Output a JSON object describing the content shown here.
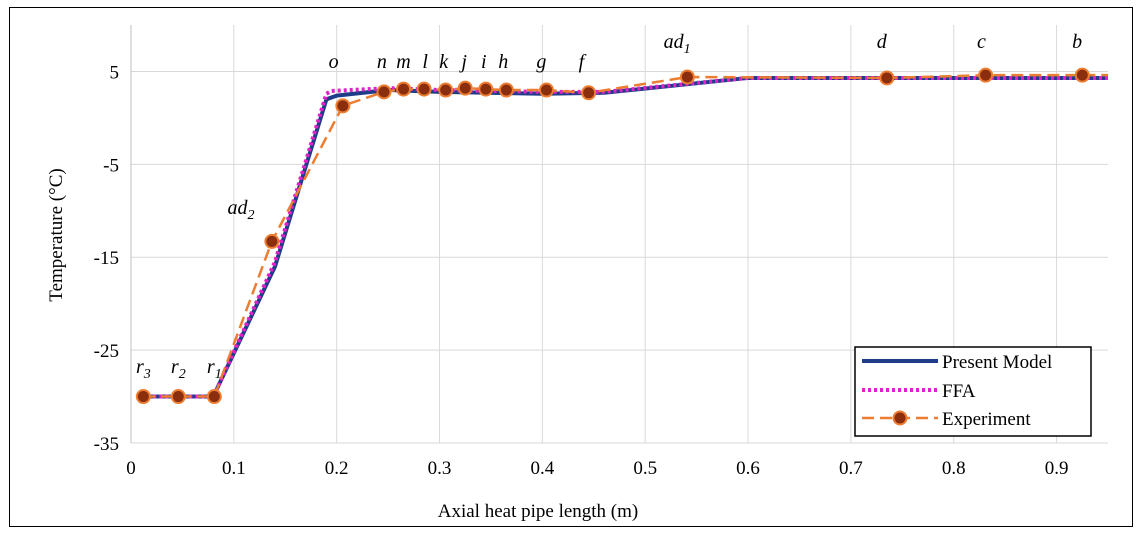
{
  "chart_data": {
    "type": "line",
    "xlabel": "Axial heat pipe length (m)",
    "ylabel": "Temperature (°C)",
    "xlim": [
      0,
      0.95
    ],
    "ylim": [
      -35,
      10
    ],
    "x_ticks": [
      "0",
      "0.1",
      "0.2",
      "0.3",
      "0.4",
      "0.5",
      "0.6",
      "0.7",
      "0.8",
      "0.9"
    ],
    "x_tick_values": [
      0,
      0.1,
      0.2,
      0.3,
      0.4,
      0.5,
      0.6,
      0.7,
      0.8,
      0.9
    ],
    "y_ticks": [
      "-35",
      "-25",
      "-15",
      "-5",
      "5"
    ],
    "y_tick_values": [
      -35,
      -25,
      -15,
      -5,
      5
    ],
    "grid": "vertical and horizontal",
    "legend_position": "bottom-right",
    "series": [
      {
        "name": "Present Model",
        "color": "#1f3c88",
        "style": "solid",
        "x": [
          0.01,
          0.08,
          0.14,
          0.19,
          0.2,
          0.25,
          0.3,
          0.4,
          0.46,
          0.6,
          0.7,
          0.8,
          0.95
        ],
        "y": [
          -30,
          -30,
          -16,
          2,
          2.4,
          3,
          2.8,
          2.6,
          2.7,
          4.3,
          4.3,
          4.3,
          4.3
        ]
      },
      {
        "name": "FFA",
        "color": "#e020c8",
        "style": "dotted",
        "x": [
          0.01,
          0.08,
          0.14,
          0.19,
          0.195,
          0.25,
          0.3,
          0.4,
          0.46,
          0.6,
          0.7,
          0.8,
          0.95
        ],
        "y": [
          -30,
          -30,
          -15.5,
          2.6,
          2.9,
          3.2,
          3.0,
          2.8,
          2.8,
          4.3,
          4.3,
          4.3,
          4.3
        ]
      },
      {
        "name": "Experiment",
        "color": "#ed7d31",
        "marker_color": "#8b2e0e",
        "style": "dashed",
        "points": [
          {
            "label": "r3",
            "x": 0.012,
            "y": -30
          },
          {
            "label": "r2",
            "x": 0.046,
            "y": -30
          },
          {
            "label": "r1",
            "x": 0.081,
            "y": -30
          },
          {
            "label": "ad2",
            "x": 0.137,
            "y": -13.3
          },
          {
            "label": "o",
            "x": 0.206,
            "y": 1.3
          },
          {
            "label": "n",
            "x": 0.246,
            "y": 2.8
          },
          {
            "label": "m",
            "x": 0.265,
            "y": 3.1
          },
          {
            "label": "l",
            "x": 0.285,
            "y": 3.1
          },
          {
            "label": "k",
            "x": 0.306,
            "y": 3.0
          },
          {
            "label": "j",
            "x": 0.325,
            "y": 3.2
          },
          {
            "label": "i",
            "x": 0.345,
            "y": 3.1
          },
          {
            "label": "h",
            "x": 0.365,
            "y": 3.0
          },
          {
            "label": "g",
            "x": 0.404,
            "y": 3.0
          },
          {
            "label": "f",
            "x": 0.445,
            "y": 2.7
          },
          {
            "label": "ad1",
            "x": 0.541,
            "y": 4.4
          },
          {
            "label": "d",
            "x": 0.735,
            "y": 4.3
          },
          {
            "label": "c",
            "x": 0.831,
            "y": 4.6
          },
          {
            "label": "b",
            "x": 0.925,
            "y": 4.6
          }
        ]
      }
    ]
  },
  "point_labels": [
    {
      "id": "r3",
      "base": "r",
      "sub": "3",
      "x": 0.012
    },
    {
      "id": "r2",
      "base": "r",
      "sub": "2",
      "x": 0.046
    },
    {
      "id": "r1",
      "base": "r",
      "sub": "1",
      "x": 0.081
    },
    {
      "id": "ad2",
      "base": "ad",
      "sub": "2",
      "x": 0.107
    },
    {
      "id": "o",
      "base": "o",
      "sub": "",
      "x": 0.197
    },
    {
      "id": "n",
      "base": "n",
      "sub": "",
      "x": 0.244
    },
    {
      "id": "m",
      "base": "m",
      "sub": "",
      "x": 0.265
    },
    {
      "id": "l",
      "base": "l",
      "sub": "",
      "x": 0.286
    },
    {
      "id": "k",
      "base": "k",
      "sub": "",
      "x": 0.304
    },
    {
      "id": "j",
      "base": "j",
      "sub": "",
      "x": 0.324
    },
    {
      "id": "i",
      "base": "i",
      "sub": "",
      "x": 0.343
    },
    {
      "id": "h",
      "base": "h",
      "sub": "",
      "x": 0.362
    },
    {
      "id": "g",
      "base": "g",
      "sub": "",
      "x": 0.399
    },
    {
      "id": "f",
      "base": "f",
      "sub": "",
      "x": 0.438
    },
    {
      "id": "ad1",
      "base": "ad",
      "sub": "1",
      "x": 0.531
    },
    {
      "id": "d",
      "base": "d",
      "sub": "",
      "x": 0.73
    },
    {
      "id": "c",
      "base": "c",
      "sub": "",
      "x": 0.827
    },
    {
      "id": "b",
      "base": "b",
      "sub": "",
      "x": 0.92
    }
  ]
}
